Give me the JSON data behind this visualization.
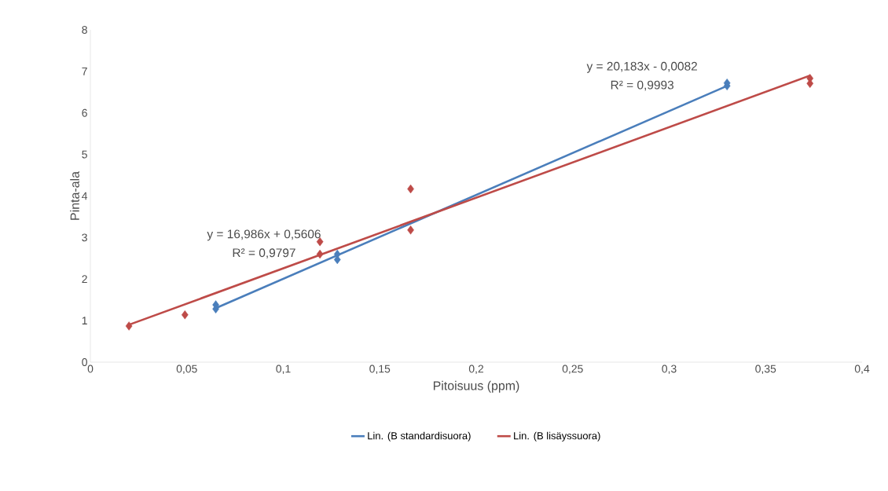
{
  "chart_data": {
    "type": "scatter",
    "xlabel": "Pitoisuus (ppm)",
    "ylabel": "Pinta-ala",
    "xlim": [
      0,
      0.4
    ],
    "ylim": [
      0,
      8
    ],
    "xticks": [
      0,
      {
        "value": 0.05,
        "label": "0,05"
      },
      {
        "value": 0.1,
        "label": "0,1"
      },
      {
        "value": 0.15,
        "label": "0,15"
      },
      {
        "value": 0.2,
        "label": "0,2"
      },
      {
        "value": 0.25,
        "label": "0,25"
      },
      {
        "value": 0.3,
        "label": "0,3"
      },
      {
        "value": 0.35,
        "label": "0,35"
      },
      {
        "value": 0.4,
        "label": "0,4"
      }
    ],
    "yticks": [
      0,
      1,
      2,
      3,
      4,
      5,
      6,
      7,
      8
    ],
    "grid": false,
    "legend": "bottom",
    "marker": "diamond",
    "series": [
      {
        "color": "#4a7ebb",
        "x": [
          0.065,
          0.065,
          0.128,
          0.128,
          0.33,
          0.33
        ],
        "values": [
          1.28,
          1.38,
          2.47,
          2.6,
          6.65,
          6.72
        ]
      },
      {
        "color": "#be4b48",
        "x": [
          0.02,
          0.049,
          0.119,
          0.119,
          0.166,
          0.166,
          0.373,
          0.373
        ],
        "values": [
          0.87,
          1.14,
          2.6,
          2.9,
          3.18,
          4.17,
          6.71,
          6.83
        ]
      },
      {
        "type": "line",
        "name": "Lin. (B standardisuora)",
        "color": "#4a7ebb",
        "marker": "none",
        "x": [
          0.065,
          0.33
        ],
        "values": [
          1.3,
          6.65
        ]
      },
      {
        "type": "line",
        "name": "Lin. (B lisäyssuora)",
        "color": "#be4b48",
        "marker": "none",
        "x": [
          0.02,
          0.373
        ],
        "values": [
          0.9,
          6.9
        ]
      }
    ],
    "annotations": [
      "y = 20,183x - 0,0082",
      "R² = 0,9993",
      "y = 16,986x + 0,5606",
      "R² = 0,9797"
    ]
  }
}
